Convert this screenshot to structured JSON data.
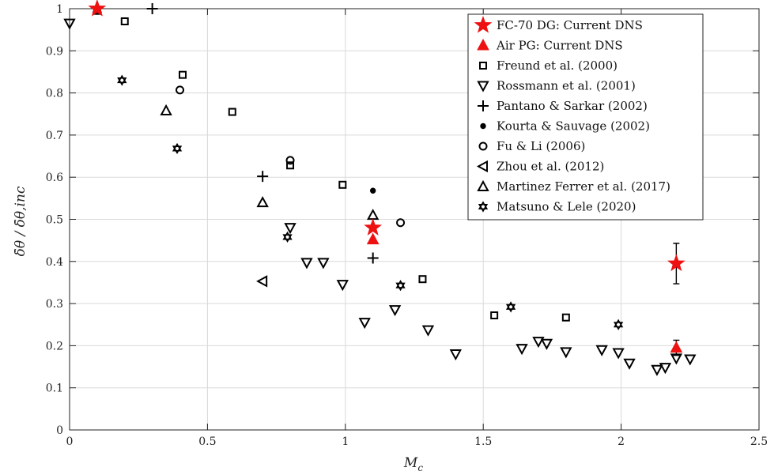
{
  "chart_data": {
    "type": "scatter",
    "xlabel": "M_c",
    "ylabel": "δ̇θ / δ̇θ,inc",
    "xlim": [
      0,
      2.5
    ],
    "ylim": [
      0,
      1
    ],
    "x_ticks": [
      "0",
      "0.5",
      "1",
      "1.5",
      "2",
      "2.5"
    ],
    "y_ticks": [
      "0",
      "0.1",
      "0.2",
      "0.3",
      "0.4",
      "0.5",
      "0.6",
      "0.7",
      "0.8",
      "0.9",
      "1"
    ],
    "grid": true,
    "legend_position": "top-right",
    "colors": {
      "current": "#ee1111",
      "reference": "#000000"
    },
    "series": [
      {
        "name": "FC-70 DG: Current DNS",
        "marker": "star",
        "color": "#ee1111",
        "points": [
          {
            "x": 0.1,
            "y": 1.0
          },
          {
            "x": 1.1,
            "y": 0.48
          },
          {
            "x": 2.2,
            "y": 0.395,
            "err": 0.048
          }
        ]
      },
      {
        "name": "Air PG: Current DNS",
        "marker": "triangle-up-filled",
        "color": "#ee1111",
        "points": [
          {
            "x": 1.1,
            "y": 0.452
          },
          {
            "x": 2.2,
            "y": 0.195,
            "err": 0.018
          }
        ]
      },
      {
        "name": "Freund et al. (2000)",
        "marker": "square",
        "color": "#000000",
        "points": [
          {
            "x": 0.1,
            "y": 0.995
          },
          {
            "x": 0.2,
            "y": 0.97
          },
          {
            "x": 0.41,
            "y": 0.843
          },
          {
            "x": 0.59,
            "y": 0.755
          },
          {
            "x": 0.8,
            "y": 0.628
          },
          {
            "x": 0.99,
            "y": 0.582
          },
          {
            "x": 1.28,
            "y": 0.358
          },
          {
            "x": 1.54,
            "y": 0.272
          },
          {
            "x": 1.8,
            "y": 0.267
          }
        ]
      },
      {
        "name": "Rossmann et al. (2001)",
        "marker": "triangle-down",
        "color": "#000000",
        "points": [
          {
            "x": 0.0,
            "y": 0.965
          },
          {
            "x": 0.8,
            "y": 0.48
          },
          {
            "x": 0.86,
            "y": 0.397
          },
          {
            "x": 0.92,
            "y": 0.397
          },
          {
            "x": 0.99,
            "y": 0.345
          },
          {
            "x": 1.07,
            "y": 0.255
          },
          {
            "x": 1.18,
            "y": 0.285
          },
          {
            "x": 1.3,
            "y": 0.237
          },
          {
            "x": 1.4,
            "y": 0.18
          },
          {
            "x": 1.64,
            "y": 0.193
          },
          {
            "x": 1.7,
            "y": 0.21
          },
          {
            "x": 1.73,
            "y": 0.205
          },
          {
            "x": 1.8,
            "y": 0.185
          },
          {
            "x": 1.93,
            "y": 0.19
          },
          {
            "x": 1.99,
            "y": 0.183
          },
          {
            "x": 2.03,
            "y": 0.158
          },
          {
            "x": 2.13,
            "y": 0.143
          },
          {
            "x": 2.16,
            "y": 0.148
          },
          {
            "x": 2.2,
            "y": 0.17
          },
          {
            "x": 2.25,
            "y": 0.168
          }
        ]
      },
      {
        "name": "Pantano & Sarkar (2002)",
        "marker": "plus",
        "color": "#000000",
        "points": [
          {
            "x": 0.3,
            "y": 1.0
          },
          {
            "x": 0.7,
            "y": 0.602
          },
          {
            "x": 1.1,
            "y": 0.408
          }
        ]
      },
      {
        "name": "Kourta & Sauvage (2002)",
        "marker": "dot",
        "color": "#000000",
        "points": [
          {
            "x": 1.1,
            "y": 0.568
          }
        ]
      },
      {
        "name": "Fu & Li (2006)",
        "marker": "circle",
        "color": "#000000",
        "points": [
          {
            "x": 0.4,
            "y": 0.807
          },
          {
            "x": 0.8,
            "y": 0.64
          },
          {
            "x": 1.2,
            "y": 0.492
          }
        ]
      },
      {
        "name": "Zhou et al. (2012)",
        "marker": "triangle-left",
        "color": "#000000",
        "points": [
          {
            "x": 0.7,
            "y": 0.353
          }
        ]
      },
      {
        "name": "Martinez Ferrer et al. (2017)",
        "marker": "triangle-up",
        "color": "#000000",
        "points": [
          {
            "x": 0.35,
            "y": 0.758
          },
          {
            "x": 0.7,
            "y": 0.54
          },
          {
            "x": 1.1,
            "y": 0.51
          }
        ]
      },
      {
        "name": "Matsuno & Lele (2020)",
        "marker": "hexagram",
        "color": "#000000",
        "points": [
          {
            "x": 0.1,
            "y": 0.998
          },
          {
            "x": 0.19,
            "y": 0.83
          },
          {
            "x": 0.39,
            "y": 0.668
          },
          {
            "x": 0.79,
            "y": 0.458
          },
          {
            "x": 1.2,
            "y": 0.343
          },
          {
            "x": 1.6,
            "y": 0.292
          },
          {
            "x": 1.99,
            "y": 0.25
          }
        ]
      }
    ]
  }
}
